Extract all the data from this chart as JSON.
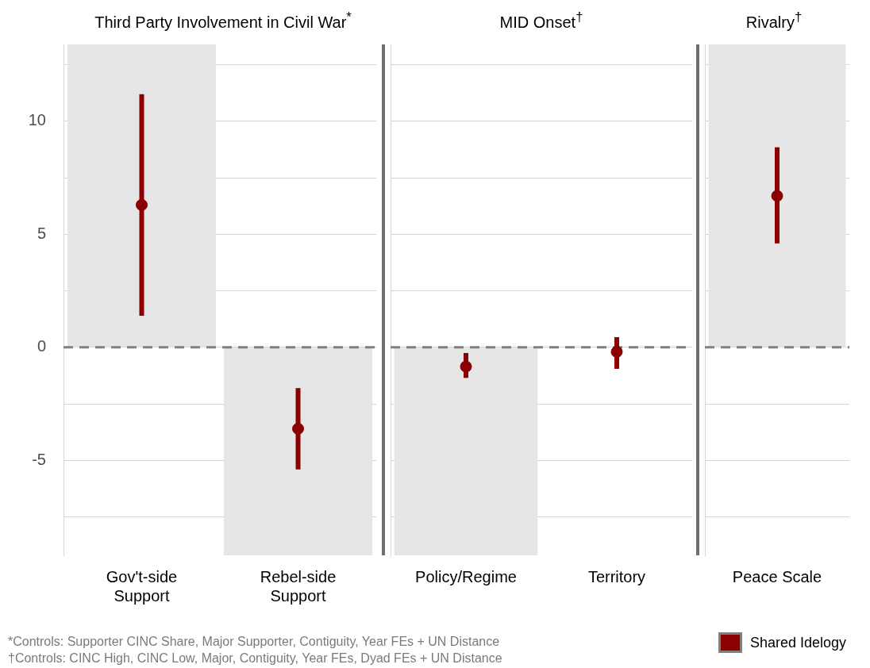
{
  "chart_data": [
    {
      "type": "scatter",
      "title": "Third Party Involvement in Civil War$^{*}$",
      "categories": [
        "Gov't-side\nSupport",
        "Rebel-side\nSupport"
      ],
      "series": [
        {
          "type": "bar",
          "color": "#e6e6e6",
          "values": [
            13.4,
            -9.2
          ]
        },
        {
          "color": "#8b0000",
          "values": [
            6.3,
            -3.6
          ],
          "errors": [
            [
              1.4,
              11.2
            ],
            [
              -5.4,
              -1.8
            ]
          ]
        }
      ],
      "ylim": [
        -9.2,
        13.4
      ],
      "yticks": [
        {
          "value": -7.5,
          "label": null
        },
        -5,
        {
          "value": -2.5,
          "label": null
        },
        0,
        {
          "value": 2.5,
          "label": null
        },
        5,
        {
          "value": 7.5,
          "label": null
        },
        10,
        {
          "value": 12.5,
          "label": null
        }
      ],
      "grid": "y",
      "marker": "circle",
      "ref_lines": [
        {
          "axis": "y",
          "value": 0,
          "color": "#808080",
          "line_style": "dashed"
        }
      ],
      "annotations": [
        "*Controls: Supporter CINC Share, Major Supporter, Contiguity, Year FEs + UN Distance",
        "†Controls: CINC High, CINC Low, Major, Contiguity, Year FEs, Dyad FEs + UN Distance"
      ]
    },
    {
      "type": "scatter",
      "title": "MID Onset$^{†}$",
      "categories": [
        "Policy/Regime",
        "Territory"
      ],
      "series": [
        {
          "type": "bar",
          "color": "#e6e6e6",
          "values": [
            -9.2,
            null
          ]
        },
        {
          "color": "#8b0000",
          "values": [
            -0.85,
            -0.2
          ],
          "errors": [
            [
              -1.35,
              -0.25
            ],
            [
              -0.95,
              0.45
            ]
          ]
        }
      ],
      "ylim": [
        -9.2,
        13.4
      ],
      "yticks": [
        {
          "value": -7.5,
          "label": null
        },
        -5,
        {
          "value": -2.5,
          "label": null
        },
        0,
        {
          "value": 2.5,
          "label": null
        },
        5,
        {
          "value": 7.5,
          "label": null
        },
        10,
        {
          "value": 12.5,
          "label": null
        }
      ],
      "grid": "y",
      "marker": "circle",
      "tick_labels": "x",
      "ref_lines": [
        {
          "axis": "y",
          "value": 0,
          "color": "#808080",
          "line_style": "dashed"
        }
      ]
    },
    {
      "type": "scatter",
      "title": "Rivalry$^{†}$",
      "categories": [
        "Peace Scale"
      ],
      "series": [
        {
          "type": "bar",
          "color": "#e6e6e6",
          "values": [
            13.4
          ]
        },
        {
          "name": "Shared Idelogy",
          "color": "#8b0000",
          "values": [
            6.7
          ],
          "errors": [
            [
              4.6,
              8.85
            ]
          ]
        }
      ],
      "ylim": [
        -9.2,
        13.4
      ],
      "yticks": [
        {
          "value": -7.5,
          "label": null
        },
        -5,
        {
          "value": -2.5,
          "label": null
        },
        0,
        {
          "value": 2.5,
          "label": null
        },
        5,
        {
          "value": 7.5,
          "label": null
        },
        10,
        {
          "value": 12.5,
          "label": null
        }
      ],
      "grid": "y",
      "marker": "circle",
      "tick_labels": "x",
      "legend": "bottom right",
      "ref_lines": [
        {
          "axis": "y",
          "value": 0,
          "color": "#808080",
          "line_style": "dashed"
        }
      ]
    }
  ]
}
